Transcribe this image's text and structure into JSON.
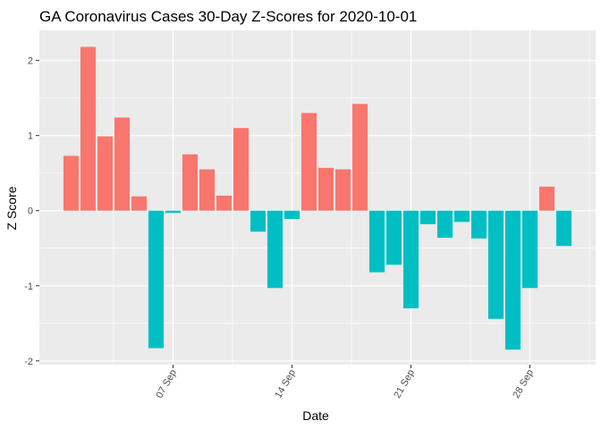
{
  "chart_data": {
    "type": "bar",
    "title": "GA Coronavirus Cases 30-Day Z-Scores for 2020-10-01",
    "xlabel": "Date",
    "ylabel": "Z Score",
    "ylim": [
      -2.05,
      2.4
    ],
    "yticks": [
      "-2",
      "-1",
      "0",
      "1",
      "2"
    ],
    "xticks": [
      "07 Sep",
      "14 Sep",
      "21 Sep",
      "28 Sep"
    ],
    "grid": true,
    "legend": "none",
    "colors": {
      "positive": "#F8766D",
      "negative": "#00BFC4",
      "panel": "#EBEBEB",
      "grid": "#FFFFFF"
    },
    "dates": [
      "2020-09-01",
      "2020-09-02",
      "2020-09-03",
      "2020-09-04",
      "2020-09-05",
      "2020-09-06",
      "2020-09-07",
      "2020-09-08",
      "2020-09-09",
      "2020-09-10",
      "2020-09-11",
      "2020-09-12",
      "2020-09-13",
      "2020-09-14",
      "2020-09-15",
      "2020-09-16",
      "2020-09-17",
      "2020-09-18",
      "2020-09-19",
      "2020-09-20",
      "2020-09-21",
      "2020-09-22",
      "2020-09-23",
      "2020-09-24",
      "2020-09-25",
      "2020-09-26",
      "2020-09-27",
      "2020-09-28",
      "2020-09-29",
      "2020-09-30"
    ],
    "values": [
      0.73,
      2.18,
      0.99,
      1.24,
      0.19,
      -1.83,
      -0.03,
      0.75,
      0.55,
      0.2,
      1.1,
      -0.28,
      -1.03,
      -0.11,
      1.3,
      0.57,
      0.55,
      1.42,
      -0.82,
      -0.72,
      -1.3,
      -0.18,
      -0.36,
      -0.15,
      -0.37,
      -1.44,
      -1.85,
      -1.03,
      0.32,
      -0.47
    ]
  }
}
